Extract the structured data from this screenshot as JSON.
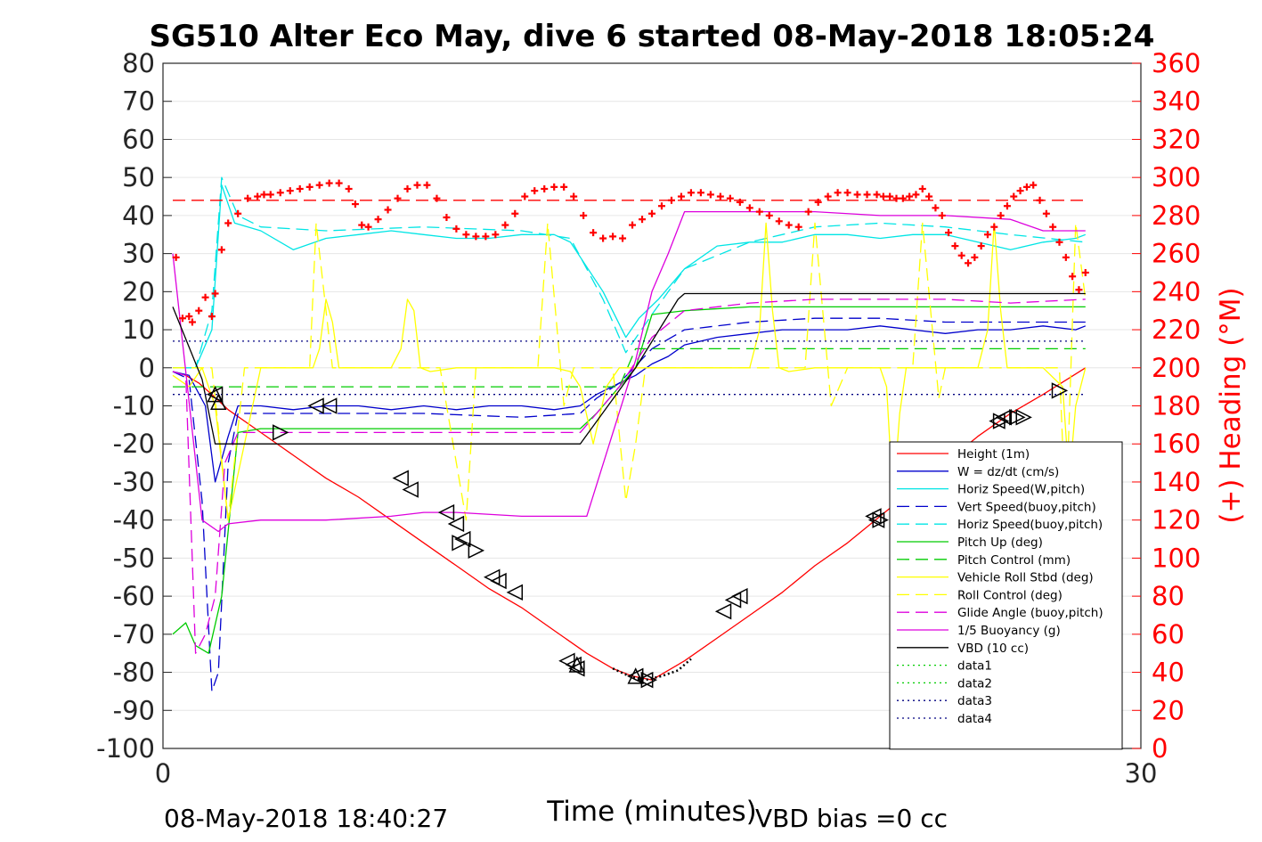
{
  "chart_data": {
    "type": "line",
    "title": "SG510 Alter Eco May, dive 6 started 08-May-2018 18:05:24",
    "xlabel": "Time (minutes)",
    "ylabel_right": "(+) Heading (°M)",
    "xlim": [
      0,
      30
    ],
    "ylim_left": [
      -100,
      80
    ],
    "ylim_right": [
      0,
      360
    ],
    "x_ticks": [
      "0",
      "30"
    ],
    "y_ticks_left": [
      "80",
      "70",
      "60",
      "50",
      "40",
      "30",
      "20",
      "10",
      "0",
      "-10",
      "-20",
      "-30",
      "-40",
      "-50",
      "-60",
      "-70",
      "-80",
      "-90",
      "-100"
    ],
    "y_ticks_right": [
      "360",
      "340",
      "320",
      "300",
      "280",
      "260",
      "240",
      "220",
      "200",
      "180",
      "160",
      "140",
      "120",
      "100",
      "80",
      "60",
      "40",
      "20",
      "0"
    ],
    "grid": true,
    "legend_position": "lower-right",
    "colors": {
      "red": "#ff0000",
      "blue": "#0000cc",
      "cyan": "#00e5e5",
      "green": "#00cc00",
      "yellow": "#ffff00",
      "magenta": "#dd00dd",
      "black": "#000000",
      "heading": "#ff0000",
      "dotgreen": "#00cc00",
      "dotnavy": "#000080"
    },
    "series": [
      {
        "name": "Height (1m)",
        "style": "solid",
        "color": "red",
        "x": [
          0.3,
          0.7,
          1.1,
          1.5,
          2,
          3,
          4,
          5,
          6,
          7,
          8,
          9,
          10,
          11,
          12,
          13,
          13.8,
          14.4,
          15,
          16,
          17,
          18,
          19,
          20,
          21,
          22,
          23,
          24,
          25,
          26,
          27,
          28.3
        ],
        "y": [
          -1,
          -2,
          -4,
          -7,
          -11,
          -17,
          -23,
          -29,
          -34,
          -40,
          -46,
          -52,
          -58,
          -63,
          -69,
          -75,
          -79,
          -81,
          -82,
          -77,
          -71,
          -65,
          -59,
          -52,
          -46,
          -39,
          -32,
          -25,
          -18,
          -12,
          -7,
          0
        ]
      },
      {
        "name": "W = dz/dt (cm/s)",
        "style": "solid",
        "color": "blue",
        "x": [
          0.3,
          0.8,
          1.3,
          1.6,
          2.0,
          2.3,
          3,
          4,
          5,
          6,
          7,
          8,
          9,
          10,
          11,
          12,
          12.8,
          13.3,
          14,
          14.5,
          15,
          15.5,
          16,
          17,
          18,
          19,
          20,
          21,
          22,
          23,
          24,
          25,
          26,
          27,
          28,
          28.3
        ],
        "y": [
          -1,
          -2,
          -10,
          -30,
          -18,
          -10,
          -10,
          -11,
          -10,
          -10,
          -11,
          -10,
          -11,
          -10,
          -10,
          -11,
          -10,
          -7,
          -4,
          -2,
          1,
          3,
          6,
          8,
          9,
          10,
          10,
          10,
          11,
          10,
          9,
          10,
          10,
          11,
          10,
          11
        ]
      },
      {
        "name": "Horiz Speed(W,pitch)",
        "style": "solid",
        "color": "cyan",
        "x": [
          0.3,
          1.0,
          1.5,
          1.8,
          2.2,
          3,
          4,
          5,
          6,
          7,
          8,
          9,
          10,
          11,
          12,
          12.5,
          13.5,
          14.2,
          14.6,
          15.2,
          16,
          17,
          18,
          19,
          20,
          21,
          22,
          23,
          24,
          25,
          26,
          27,
          28,
          28.3
        ],
        "y": [
          0,
          0,
          10,
          48,
          38,
          36,
          31,
          34,
          35,
          36,
          35,
          34,
          34,
          35,
          35,
          33,
          20,
          8,
          13,
          18,
          26,
          32,
          33,
          33,
          35,
          35,
          34,
          35,
          35,
          33,
          31,
          33,
          34,
          35
        ]
      },
      {
        "name": "Vert Speed(buoy,pitch)",
        "style": "dashed",
        "color": "blue",
        "x": [
          0.3,
          0.8,
          1.2,
          1.5,
          1.7,
          2.0,
          2.3,
          3,
          5,
          8,
          11,
          12.8,
          13.3,
          14,
          15,
          16,
          18,
          20,
          22,
          24,
          26,
          28.3
        ],
        "y": [
          -1,
          -3,
          -35,
          -85,
          -80,
          -25,
          -12,
          -12,
          -12,
          -12,
          -13,
          -12,
          -8,
          -4,
          5,
          10,
          12,
          13,
          13,
          12,
          12,
          12
        ]
      },
      {
        "name": "Horiz Speed(buoy,pitch)",
        "style": "dashed",
        "color": "cyan",
        "x": [
          0.3,
          1.0,
          1.5,
          1.8,
          2.3,
          3,
          5,
          8,
          11,
          12.5,
          13.5,
          14.2,
          15,
          16,
          18,
          20,
          22,
          24,
          26,
          28.3
        ],
        "y": [
          0,
          0,
          15,
          50,
          40,
          37,
          36,
          37,
          36,
          34,
          18,
          4,
          14,
          26,
          33,
          37,
          38,
          37,
          35,
          33
        ]
      },
      {
        "name": "Pitch Up (deg)",
        "style": "solid",
        "color": "green",
        "x": [
          0.3,
          0.7,
          1.0,
          1.4,
          1.8,
          2.3,
          3,
          5,
          8,
          11,
          12.8,
          13.3,
          14,
          14.5,
          15,
          16,
          18,
          20,
          22,
          24,
          26,
          28.3
        ],
        "y": [
          -70,
          -67,
          -73,
          -75,
          -60,
          -17,
          -16,
          -16,
          -16,
          -16,
          -16,
          -12,
          -5,
          0,
          14,
          15,
          16,
          16,
          16,
          16,
          16,
          16
        ]
      },
      {
        "name": "Pitch Control (mm)",
        "style": "dashed",
        "color": "green",
        "x": [
          0.3,
          2,
          8,
          13,
          14,
          14.5,
          15,
          20,
          28.3
        ],
        "y": [
          -5,
          -5,
          -5,
          -5,
          -5,
          5,
          5,
          5,
          5
        ]
      },
      {
        "name": "Vehicle Roll Stbd (deg)",
        "style": "solid",
        "color": "yellow",
        "x": [
          0.3,
          0.8,
          1.2,
          1.6,
          2.0,
          2.5,
          3,
          4,
          4.6,
          4.8,
          5.0,
          5.2,
          5.4,
          6,
          7,
          7.3,
          7.5,
          7.7,
          7.9,
          8.2,
          9,
          10,
          11,
          12,
          12.5,
          12.8,
          13.2,
          13.6,
          14,
          15,
          16,
          17,
          18,
          18.3,
          18.5,
          18.7,
          18.9,
          19.2,
          20,
          21,
          22,
          22.2,
          22.4,
          22.6,
          22.8,
          23.2,
          24,
          25,
          25.3,
          25.5,
          25.7,
          25.9,
          26.3,
          27,
          27.6,
          27.8,
          28,
          28.3
        ],
        "y": [
          -2,
          -5,
          0,
          -10,
          -40,
          -20,
          0,
          0,
          0,
          5,
          18,
          12,
          0,
          0,
          0,
          5,
          18,
          15,
          0,
          -1,
          0,
          0,
          0,
          0,
          -1,
          -5,
          -20,
          -5,
          0,
          0,
          0,
          0,
          0,
          10,
          38,
          15,
          0,
          -1,
          0,
          0,
          0,
          -5,
          -35,
          -12,
          0,
          0,
          0,
          0,
          10,
          38,
          15,
          0,
          0,
          0,
          -5,
          -30,
          -10,
          0
        ]
      },
      {
        "name": "Roll Control (deg)",
        "style": "dashed",
        "color": "yellow",
        "x": [
          0.3,
          1.5,
          2.0,
          2.5,
          4.5,
          4.7,
          5.2,
          8.5,
          8.8,
          9.3,
          9.6,
          11.5,
          11.8,
          12.3,
          12.6,
          13.8,
          14.2,
          14.5,
          14.8,
          19.7,
          20.0,
          20.5,
          21.0,
          23.0,
          23.3,
          23.8,
          24.0,
          27.5,
          27.7,
          28.0,
          28.3
        ],
        "y": [
          0,
          0,
          -40,
          0,
          0,
          38,
          0,
          0,
          -15,
          -40,
          0,
          0,
          38,
          -10,
          0,
          0,
          -35,
          -20,
          0,
          0,
          38,
          -10,
          0,
          0,
          38,
          -8,
          0,
          0,
          -40,
          38,
          18
        ]
      },
      {
        "name": "Glide Angle (buoy,pitch)",
        "style": "dashed",
        "color": "magenta",
        "x": [
          0.3,
          0.7,
          1.0,
          1.3,
          1.6,
          1.9,
          2.3,
          3,
          5,
          8,
          11,
          12.8,
          13.3,
          14,
          15,
          16,
          18,
          20,
          22,
          24,
          26,
          28.3
        ],
        "y": [
          -1,
          -2,
          -75,
          -70,
          -60,
          -25,
          -17,
          -17,
          -17,
          -17,
          -17,
          -17,
          -12,
          -5,
          8,
          15,
          17,
          18,
          18,
          18,
          17,
          18
        ]
      },
      {
        "name": "1/5 Buoyancy (g)",
        "style": "solid",
        "color": "magenta",
        "x": [
          0.3,
          1.2,
          1.7,
          2.0,
          3,
          5,
          7,
          8,
          9,
          11,
          12,
          13.0,
          14.5,
          15.0,
          15.5,
          16,
          17,
          18,
          20,
          22,
          24,
          26,
          27,
          28.3
        ],
        "y": [
          30,
          -40,
          -43,
          -41,
          -40,
          -40,
          -39,
          -38,
          -38,
          -39,
          -39,
          -39,
          2,
          20,
          30,
          41,
          41,
          41,
          41,
          40,
          40,
          39,
          36,
          36
        ]
      },
      {
        "name": "VBD (10 cc)",
        "style": "solid",
        "color": "black",
        "x": [
          0.3,
          1.2,
          1.6,
          3,
          12.8,
          14.5,
          15.8,
          16,
          28.3
        ],
        "y": [
          16,
          -3,
          -20,
          -20,
          -20,
          0,
          18,
          19.5,
          19.5
        ]
      },
      {
        "name": "data1",
        "style": "dotted",
        "color": "dotgreen",
        "x": [],
        "y": []
      },
      {
        "name": "data2",
        "style": "dotted",
        "color": "dotgreen",
        "x": [],
        "y": []
      },
      {
        "name": "data3",
        "style": "dotted",
        "color": "dotnavy",
        "x": [
          0.3,
          28.3
        ],
        "y": [
          7,
          7
        ]
      },
      {
        "name": "data4",
        "style": "dotted",
        "color": "dotnavy",
        "x": [
          0.3,
          28.3
        ],
        "y": [
          -7,
          -7
        ]
      }
    ],
    "pump_curve": {
      "x": [
        13.8,
        14.3,
        14.8,
        15.3,
        15.8,
        16.2
      ],
      "y": [
        -79,
        -81,
        -82,
        -81,
        -79.5,
        -76.5
      ]
    },
    "heading_reference": {
      "value": 288
    },
    "heading": {
      "x": [
        0.4,
        0.6,
        0.8,
        0.9,
        1.1,
        1.3,
        1.5,
        1.6,
        1.8,
        2.0,
        2.3,
        2.6,
        2.9,
        3.1,
        3.3,
        3.6,
        3.9,
        4.2,
        4.5,
        4.8,
        5.1,
        5.4,
        5.7,
        5.9,
        6.1,
        6.3,
        6.6,
        6.9,
        7.2,
        7.5,
        7.8,
        8.1,
        8.4,
        8.7,
        9.0,
        9.3,
        9.6,
        9.9,
        10.2,
        10.5,
        10.8,
        11.1,
        11.4,
        11.7,
        12.0,
        12.3,
        12.6,
        12.9,
        13.2,
        13.5,
        13.8,
        14.1,
        14.4,
        14.7,
        15.0,
        15.3,
        15.6,
        15.9,
        16.2,
        16.5,
        16.8,
        17.1,
        17.4,
        17.7,
        18.0,
        18.3,
        18.6,
        18.9,
        19.2,
        19.5,
        19.8,
        20.1,
        20.4,
        20.7,
        21.0,
        21.3,
        21.6,
        21.9,
        22.1,
        22.3,
        22.5,
        22.7,
        22.9,
        23.1,
        23.3,
        23.5,
        23.7,
        23.9,
        24.1,
        24.3,
        24.5,
        24.7,
        24.9,
        25.1,
        25.3,
        25.5,
        25.7,
        25.9,
        26.1,
        26.3,
        26.5,
        26.7,
        26.9,
        27.1,
        27.3,
        27.5,
        27.7,
        27.9,
        28.1,
        28.3
      ],
      "y": [
        258,
        226,
        227,
        224,
        230,
        237,
        227,
        239,
        262,
        276,
        281,
        289,
        290,
        291,
        291,
        292,
        293,
        294,
        295,
        296,
        297,
        297,
        294,
        286,
        275,
        274,
        278,
        283,
        289,
        294,
        296,
        296,
        289,
        279,
        273,
        270,
        269,
        269,
        270,
        275,
        281,
        290,
        293,
        294,
        295,
        295,
        290,
        280,
        271,
        268,
        269,
        268,
        275,
        278,
        281,
        285,
        288,
        290,
        292,
        292,
        291,
        290,
        289,
        287,
        284,
        282,
        280,
        277,
        275,
        274,
        282,
        287,
        290,
        292,
        292,
        291,
        291,
        291,
        290,
        290,
        289,
        289,
        290,
        291,
        294,
        290,
        284,
        280,
        271,
        264,
        259,
        255,
        258,
        264,
        270,
        274,
        280,
        285,
        290,
        293,
        295,
        296,
        288,
        281,
        274,
        266,
        258,
        248,
        241,
        250
      ]
    },
    "markers_right": {
      "x": [
        3.6,
        9.1,
        9.6,
        14.9,
        22.0,
        25.7,
        26.2,
        26.4,
        27.5
      ],
      "y": [
        -17,
        -46,
        -48,
        -82,
        -40,
        -14,
        -13,
        -13,
        -6
      ]
    },
    "markers_left": {
      "x": [
        1.6,
        4.7,
        5.1,
        7.3,
        7.6,
        8.7,
        9.0,
        9.2,
        10.1,
        10.3,
        10.8,
        12.4,
        12.6,
        12.7,
        14.5,
        14.8,
        17.2,
        17.5,
        17.7,
        21.8,
        21.9,
        25.6,
        25.8
      ],
      "y": [
        -7,
        -10,
        -10,
        -29,
        -32,
        -38,
        -41,
        -45,
        -55,
        -56,
        -59,
        -77,
        -78,
        -79,
        -81,
        -82,
        -64,
        -61,
        -60,
        -39,
        -40,
        -14,
        -13
      ]
    },
    "markers_up": {
      "x": [
        1.6,
        1.7,
        12.7,
        14.5
      ],
      "y": [
        -7,
        -9,
        -78,
        -81
      ]
    }
  },
  "footer": {
    "timestamp": "08-May-2018 18:40:27",
    "vbd_bias": "VBD bias =0 cc"
  }
}
